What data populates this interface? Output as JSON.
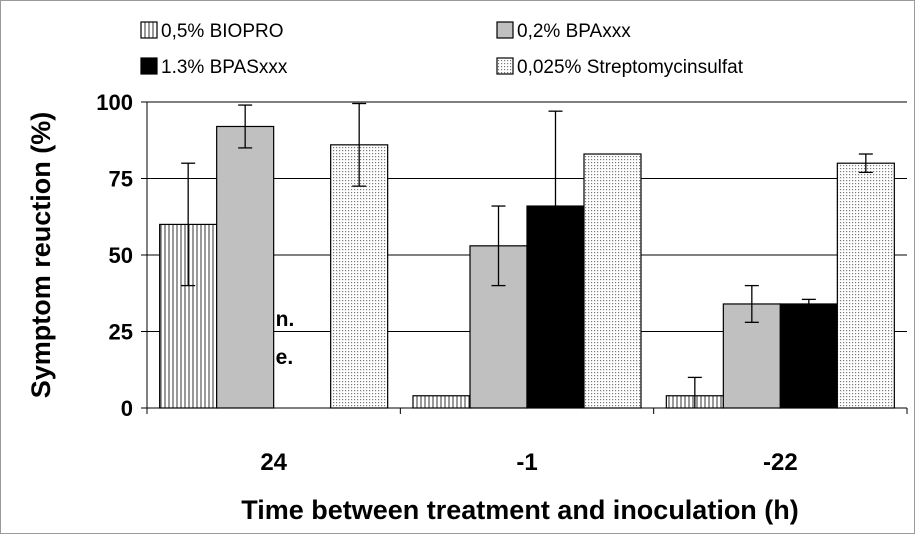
{
  "chart_data": {
    "type": "bar",
    "title": "",
    "xlabel": "Time between treatment and inoculation (h)",
    "ylabel": "Symptom reuction (%)",
    "ylim": [
      0,
      100
    ],
    "yticks": [
      0,
      25,
      50,
      75,
      100
    ],
    "grid": true,
    "legend_position": "top",
    "categories": [
      "24",
      "-1",
      "-22"
    ],
    "series": [
      {
        "name": "0,5% BIOPRO",
        "color": "#ffffff",
        "pattern": "vertical-lines",
        "values": [
          60,
          4,
          4
        ],
        "errors": [
          20,
          null,
          6
        ]
      },
      {
        "name": "0,2% BPAxxx",
        "color": "#c0c0c0",
        "pattern": "solid",
        "values": [
          92,
          53,
          34
        ],
        "errors": [
          7,
          13,
          6
        ]
      },
      {
        "name": "1.3% BPASxxx",
        "color": "#000000",
        "pattern": "solid",
        "values": [
          null,
          66,
          34
        ],
        "errors": [
          null,
          31,
          1.5
        ]
      },
      {
        "name": "0,025% Streptomycinsulfat",
        "color": "#f0f0f0",
        "pattern": "dots",
        "values": [
          86,
          83,
          80
        ],
        "errors": [
          13.5,
          null,
          3
        ]
      }
    ],
    "annotations": [
      {
        "category": "24",
        "series": "1.3% BPASxxx",
        "lines": [
          "n.",
          "e."
        ]
      }
    ]
  }
}
